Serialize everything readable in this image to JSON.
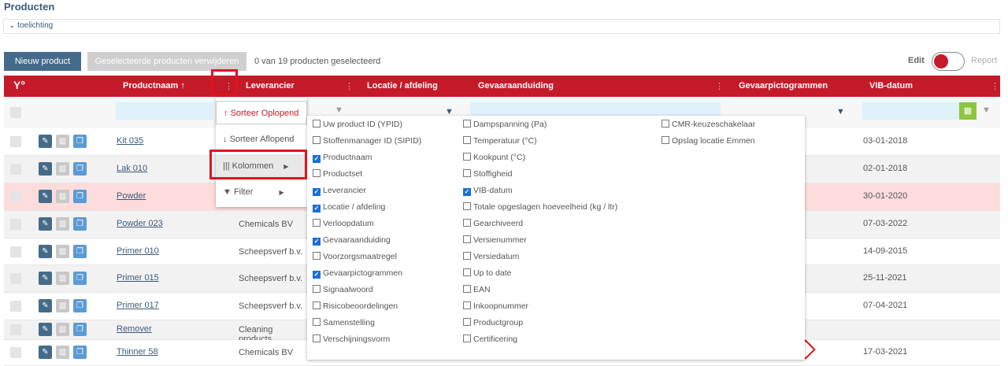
{
  "title": "Producten",
  "explanation_label": "toelichting",
  "toolbar": {
    "new_label": "Nieuw product",
    "delete_label": "Geselecteerde producten verwijderen",
    "selection_count": "0 van 19 producten geselecteerd",
    "edit_label": "Edit",
    "report_label": "Report",
    "mode": "Edit"
  },
  "colors": {
    "header": "#c41a2a",
    "primary": "#456b8a",
    "highlight_row": "#fddcdc",
    "calendar": "#8dc63f"
  },
  "columns": {
    "product": "Productnaam",
    "product_sort": "↑",
    "supplier": "Leverancier",
    "location": "Locatie / afdeling",
    "hazard": "Gevaaraanduiding",
    "pictograms": "Gevaarpictogrammen",
    "sds_date": "VIB-datum"
  },
  "rows": [
    {
      "name": "Kit 035",
      "supplier": "",
      "date": "03-01-2018",
      "highlight": false
    },
    {
      "name": "Lak 010",
      "supplier": "",
      "date": "02-01-2018",
      "highlight": false
    },
    {
      "name": "Powder",
      "supplier": "",
      "date": "30-01-2020",
      "highlight": true
    },
    {
      "name": "Powder 023",
      "supplier": "Chemicals BV",
      "date": "07-03-2022",
      "highlight": false
    },
    {
      "name": "Primer 010",
      "supplier": "Scheepsverf b.v.",
      "date": "14-09-2015",
      "highlight": false
    },
    {
      "name": "Primer 015",
      "supplier": "Scheepsverf b.v.",
      "date": "25-11-2021",
      "highlight": false
    },
    {
      "name": "Primer 017",
      "supplier": "Scheepsverf b.v.",
      "date": "07-04-2021",
      "highlight": false
    },
    {
      "name": "Remover",
      "supplier": "Cleaning products",
      "date": "",
      "highlight": false
    },
    {
      "name": "Thinner 58",
      "supplier": "Chemicals BV",
      "date": "17-03-2021",
      "highlight": false,
      "pictogram": "environment-hazard"
    }
  ],
  "column_menu": {
    "sort_asc": "Sorteer Oplopend",
    "sort_desc": "Sorteer Aflopend",
    "columns": "Kolommen",
    "filter": "Filter"
  },
  "column_options": [
    [
      {
        "label": "Uw product ID (YPID)",
        "checked": false
      },
      {
        "label": "Stoffenmanager ID (SIPID)",
        "checked": false
      },
      {
        "label": "Productnaam",
        "checked": true
      },
      {
        "label": "Productset",
        "checked": false
      },
      {
        "label": "Leverancier",
        "checked": true
      },
      {
        "label": "Locatie / afdeling",
        "checked": true
      },
      {
        "label": "Verloopdatum",
        "checked": false
      },
      {
        "label": "Gevaaraanduiding",
        "checked": true
      },
      {
        "label": "Voorzorgsmaatregel",
        "checked": false
      },
      {
        "label": "Gevaarpictogrammen",
        "checked": true
      },
      {
        "label": "Signaalwoord",
        "checked": false
      },
      {
        "label": "Risicobeoordelingen",
        "checked": false
      },
      {
        "label": "Samenstelling",
        "checked": false
      },
      {
        "label": "Verschijningsvorm",
        "checked": false
      }
    ],
    [
      {
        "label": "Dampspanning (Pa)",
        "checked": false
      },
      {
        "label": "Temperatuur (°C)",
        "checked": false
      },
      {
        "label": "Kookpunt (°C)",
        "checked": false
      },
      {
        "label": "Stoffigheid",
        "checked": false
      },
      {
        "label": "VIB-datum",
        "checked": true
      },
      {
        "label": "Totale opgeslagen hoeveelheid (kg / ltr)",
        "checked": false
      },
      {
        "label": "Gearchiveerd",
        "checked": false
      },
      {
        "label": "Versienummer",
        "checked": false
      },
      {
        "label": "Versiedatum",
        "checked": false
      },
      {
        "label": "Up to date",
        "checked": false
      },
      {
        "label": "EAN",
        "checked": false
      },
      {
        "label": "Inkoopnummer",
        "checked": false
      },
      {
        "label": "Productgroup",
        "checked": false
      },
      {
        "label": "Certificering",
        "checked": false
      }
    ],
    [
      {
        "label": "CMR-keuzeschakelaar",
        "checked": false
      },
      {
        "label": "Opslag locatie Emmen",
        "checked": false
      }
    ]
  ]
}
